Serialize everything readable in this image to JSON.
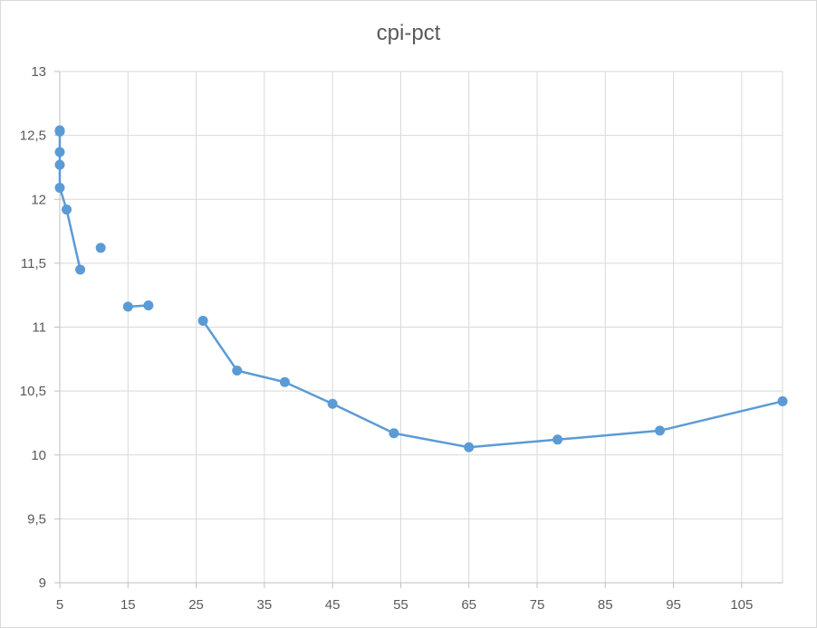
{
  "chart_data": {
    "type": "scatter",
    "title": "cpi-pct",
    "xlabel": "",
    "ylabel": "",
    "xlim": [
      5,
      111
    ],
    "ylim": [
      9,
      13
    ],
    "x_ticks": [
      5,
      15,
      25,
      35,
      45,
      55,
      65,
      75,
      85,
      95,
      105
    ],
    "x_tick_labels": [
      "5",
      "15",
      "25",
      "35",
      "45",
      "55",
      "65",
      "75",
      "85",
      "95",
      "105"
    ],
    "y_ticks": [
      9,
      9.5,
      10,
      10.5,
      11,
      11.5,
      12,
      12.5,
      13
    ],
    "y_tick_labels": [
      "9",
      "9,5",
      "10",
      "10,5",
      "11",
      "11,5",
      "12",
      "12,5",
      "13"
    ],
    "grid": true,
    "legend": "none",
    "series_color": "#5b9bd5",
    "series": [
      {
        "points": [
          {
            "x": 5,
            "y": 12.54,
            "connect_to_next": true
          },
          {
            "x": 5,
            "y": 12.53,
            "connect_to_next": true
          },
          {
            "x": 5,
            "y": 12.37,
            "connect_to_next": true
          },
          {
            "x": 5,
            "y": 12.27,
            "connect_to_next": true
          },
          {
            "x": 5,
            "y": 12.09,
            "connect_to_next": true
          },
          {
            "x": 6,
            "y": 11.92,
            "connect_to_next": true
          },
          {
            "x": 8,
            "y": 11.45,
            "connect_to_next": false
          },
          {
            "x": 11,
            "y": 11.62,
            "connect_to_next": false
          },
          {
            "x": 15,
            "y": 11.16,
            "connect_to_next": true
          },
          {
            "x": 18,
            "y": 11.17,
            "connect_to_next": false
          },
          {
            "x": 26,
            "y": 11.05,
            "connect_to_next": true
          },
          {
            "x": 31,
            "y": 10.66,
            "connect_to_next": true
          },
          {
            "x": 38,
            "y": 10.57,
            "connect_to_next": true
          },
          {
            "x": 45,
            "y": 10.4,
            "connect_to_next": true
          },
          {
            "x": 54,
            "y": 10.17,
            "connect_to_next": true
          },
          {
            "x": 65,
            "y": 10.06,
            "connect_to_next": true
          },
          {
            "x": 78,
            "y": 10.12,
            "connect_to_next": true
          },
          {
            "x": 93,
            "y": 10.19,
            "connect_to_next": true
          },
          {
            "x": 111,
            "y": 10.42,
            "connect_to_next": false
          }
        ]
      }
    ]
  }
}
